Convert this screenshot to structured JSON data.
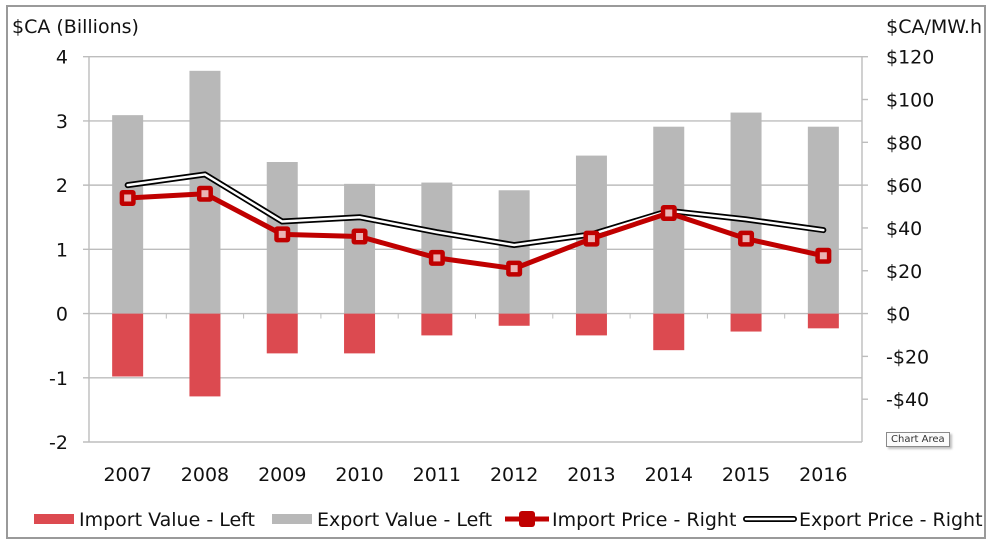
{
  "chart_data": {
    "type": "bar",
    "title": "",
    "categories": [
      "2007",
      "2008",
      "2009",
      "2010",
      "2011",
      "2012",
      "2013",
      "2014",
      "2015",
      "2016"
    ],
    "left_axis": {
      "label": "$CA (Billions)",
      "range": [
        -2,
        4
      ],
      "ticks": [
        4,
        3,
        2,
        1,
        0,
        -1,
        -2
      ],
      "tick_labels": [
        "4",
        "3",
        "2",
        "1",
        "0",
        "-1",
        "-2"
      ]
    },
    "right_axis": {
      "label": "$CA/MW.h",
      "range": [
        -60,
        120
      ],
      "ticks": [
        120,
        100,
        80,
        60,
        40,
        20,
        0,
        -20,
        -40
      ],
      "tick_labels": [
        "$120",
        "$100",
        "$80",
        "$60",
        "$40",
        "$20",
        "$0",
        "-$20",
        "-$40"
      ]
    },
    "grid": true,
    "legend_position": "bottom",
    "series": [
      {
        "name": "Import Value - Left",
        "kind": "bar",
        "axis": "left",
        "color": "#dc4a50",
        "values": [
          -0.98,
          -1.29,
          -0.62,
          -0.62,
          -0.34,
          -0.19,
          -0.34,
          -0.57,
          -0.28,
          -0.23
        ]
      },
      {
        "name": "Export Value - Left",
        "kind": "bar",
        "axis": "left",
        "color": "#b8b8b8",
        "values": [
          3.09,
          3.78,
          2.36,
          2.02,
          2.04,
          1.92,
          2.46,
          2.91,
          3.13,
          2.91
        ]
      },
      {
        "name": "Import Price - Right",
        "kind": "line",
        "axis": "right",
        "color": "#c00000",
        "values": [
          54,
          56,
          37,
          36,
          26,
          21,
          35,
          47,
          35,
          27
        ]
      },
      {
        "name": "Export Price - Right",
        "kind": "line",
        "axis": "right",
        "color": "#000000",
        "values": [
          60,
          65,
          43,
          45,
          38,
          32,
          37,
          48,
          44,
          39
        ]
      }
    ]
  },
  "overlay": {
    "tooltip": "Chart Area"
  }
}
